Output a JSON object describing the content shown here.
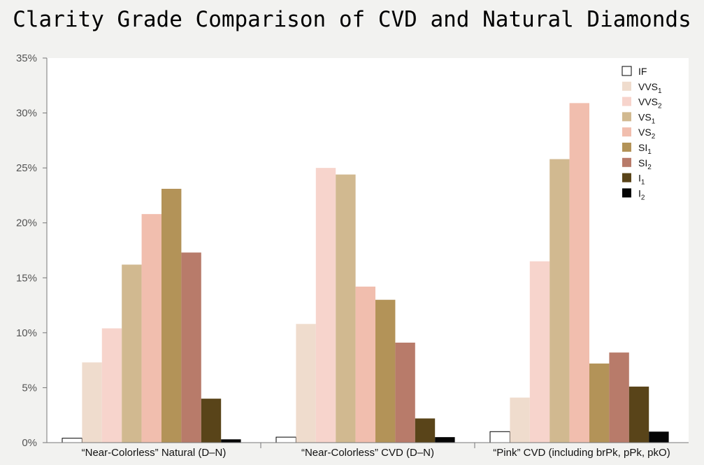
{
  "chart_data": {
    "type": "bar",
    "title": "Clarity Grade Comparison of CVD and Natural Diamonds",
    "ylabel": "",
    "xlabel": "",
    "ylim": [
      0,
      35
    ],
    "yticks": [
      0,
      5,
      10,
      15,
      20,
      25,
      30,
      35
    ],
    "ytick_labels": [
      "0%",
      "5%",
      "10%",
      "15%",
      "20%",
      "25%",
      "30%",
      "35%"
    ],
    "categories": [
      "“Near-Colorless” Natural (D–N)",
      "“Near-Colorless” CVD (D–N)",
      "“Pink” CVD (including brPk, pPk, pkO)"
    ],
    "legend_position": "top-right",
    "grid": false,
    "series": [
      {
        "name": "IF",
        "base": "IF",
        "sub": "",
        "color": "#ffffff",
        "outline": true,
        "values": [
          0.4,
          0.5,
          1.0
        ]
      },
      {
        "name": "VVS1",
        "base": "VVS",
        "sub": "1",
        "color": "#efdccd",
        "values": [
          7.3,
          10.8,
          4.1
        ]
      },
      {
        "name": "VVS2",
        "base": "VVS",
        "sub": "2",
        "color": "#f7d4cc",
        "values": [
          10.4,
          25.0,
          16.5
        ]
      },
      {
        "name": "VS1",
        "base": "VS",
        "sub": "1",
        "color": "#d1b990",
        "values": [
          16.2,
          24.4,
          25.8
        ]
      },
      {
        "name": "VS2",
        "base": "VS",
        "sub": "2",
        "color": "#f1beae",
        "values": [
          20.8,
          14.2,
          30.9
        ]
      },
      {
        "name": "SI1",
        "base": "SI",
        "sub": "1",
        "color": "#b39358",
        "values": [
          23.1,
          13.0,
          7.2
        ]
      },
      {
        "name": "SI2",
        "base": "SI",
        "sub": "2",
        "color": "#b87b6a",
        "values": [
          17.3,
          9.1,
          8.2
        ]
      },
      {
        "name": "I1",
        "base": "I",
        "sub": "1",
        "color": "#594419",
        "values": [
          4.0,
          2.2,
          5.1
        ]
      },
      {
        "name": "I2",
        "base": "I",
        "sub": "2",
        "color": "#050505",
        "values": [
          0.3,
          0.5,
          1.0
        ]
      }
    ]
  }
}
